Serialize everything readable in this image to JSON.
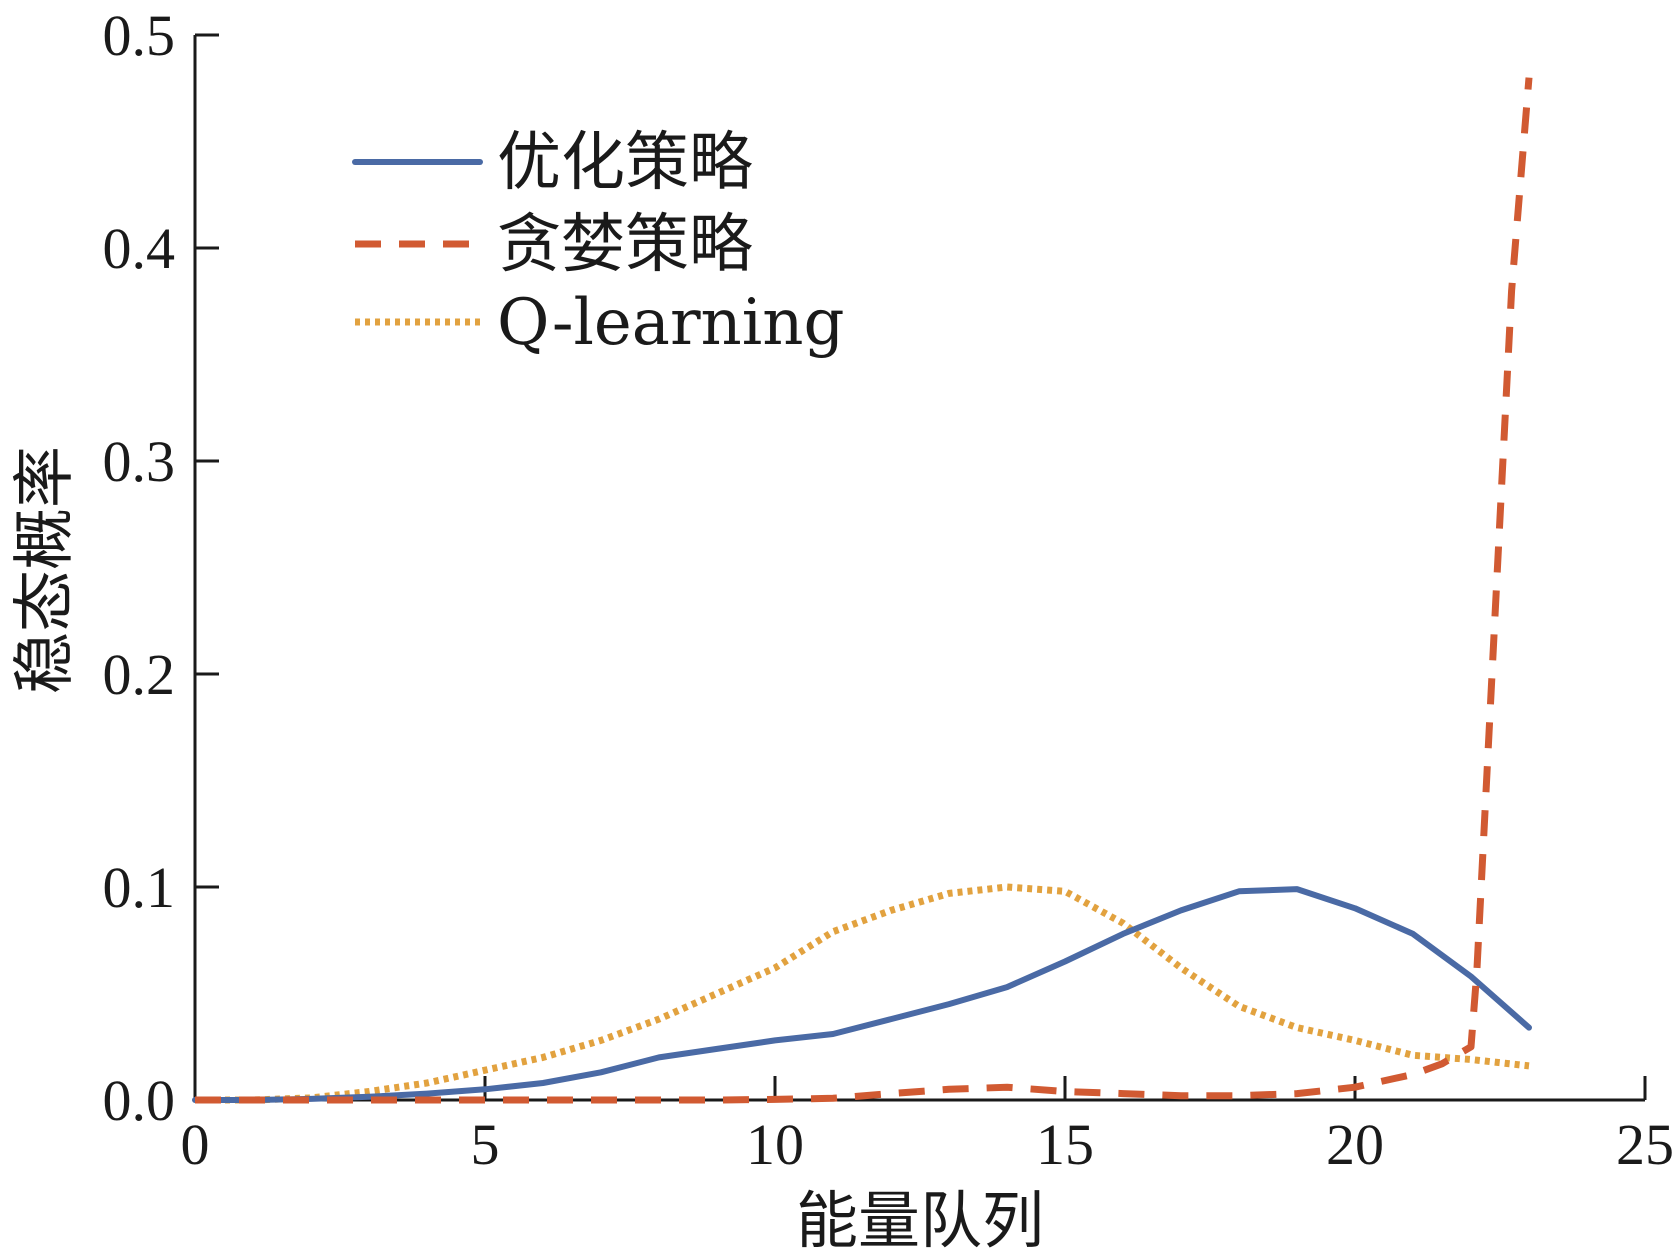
{
  "chart_data": {
    "type": "line",
    "title": "",
    "xlabel": "能量队列",
    "ylabel": "稳态概率",
    "xlim": [
      0,
      25
    ],
    "ylim": [
      0,
      0.5
    ],
    "x_ticks": [
      0,
      5,
      10,
      15,
      20,
      25
    ],
    "x_tick_labels": [
      "0",
      "5",
      "10",
      "15",
      "20",
      "25"
    ],
    "y_ticks": [
      0,
      0.1,
      0.2,
      0.3,
      0.4,
      0.5
    ],
    "y_tick_labels": [
      "0.0",
      "0.1",
      "0.2",
      "0.3",
      "0.4",
      "0.5"
    ],
    "grid": false,
    "legend_position": "top-left",
    "series": [
      {
        "name": "优化策略",
        "color": "#4a6aa5",
        "style": "solid",
        "x": [
          0,
          1,
          2,
          3,
          4,
          5,
          6,
          7,
          8,
          9,
          10,
          11,
          12,
          13,
          14,
          15,
          16,
          17,
          18,
          19,
          20,
          21,
          22,
          23
        ],
        "values": [
          0,
          0,
          0.0005,
          0.0015,
          0.003,
          0.005,
          0.008,
          0.013,
          0.02,
          0.024,
          0.028,
          0.031,
          0.038,
          0.045,
          0.053,
          0.065,
          0.078,
          0.089,
          0.098,
          0.099,
          0.09,
          0.078,
          0.058,
          0.034
        ]
      },
      {
        "name": "贪婪策略",
        "color": "#d15a32",
        "style": "dashed",
        "x": [
          0,
          1,
          2,
          3,
          4,
          5,
          6,
          7,
          8,
          9,
          10,
          11,
          12,
          13,
          14,
          15,
          16,
          17,
          18,
          19,
          20,
          21,
          21.5,
          22,
          22.1,
          22.4,
          22.7,
          23
        ],
        "values": [
          0,
          0,
          0,
          0,
          0,
          0,
          0,
          0,
          0,
          0,
          0.0003,
          0.0008,
          0.003,
          0.005,
          0.006,
          0.004,
          0.003,
          0.002,
          0.002,
          0.003,
          0.006,
          0.012,
          0.017,
          0.025,
          0.06,
          0.22,
          0.38,
          0.48
        ]
      },
      {
        "name": "Q-learning",
        "color": "#e2a23f",
        "style": "dotted",
        "x": [
          0,
          1,
          2,
          3,
          4,
          5,
          6,
          7,
          8,
          9,
          10,
          11,
          12,
          13,
          14,
          15,
          16,
          17,
          18,
          19,
          20,
          21,
          22,
          23
        ],
        "values": [
          0,
          0,
          0.001,
          0.004,
          0.008,
          0.014,
          0.02,
          0.028,
          0.038,
          0.05,
          0.062,
          0.079,
          0.089,
          0.097,
          0.1,
          0.098,
          0.083,
          0.062,
          0.044,
          0.034,
          0.028,
          0.021,
          0.019,
          0.016
        ]
      }
    ]
  }
}
